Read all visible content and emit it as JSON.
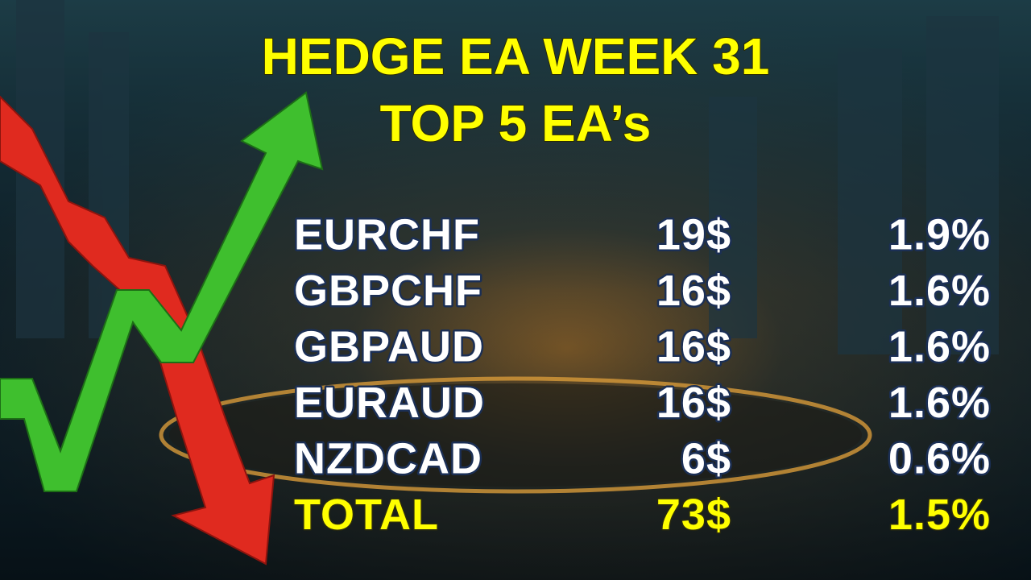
{
  "header": {
    "title": [
      "HEDGE EA WEEK 31",
      "TOP 5 EA’s"
    ]
  },
  "table": {
    "rows": [
      [
        "EURCHF",
        "19$",
        "1.9%"
      ],
      [
        "GBPCHF",
        "16$",
        "1.6%"
      ],
      [
        "GBPAUD",
        "16$",
        "1.6%"
      ],
      [
        "EURAUD",
        "16$",
        "1.6%"
      ],
      [
        "NZDCAD",
        "6$",
        "0.6%"
      ]
    ],
    "total": [
      "TOTAL",
      "73$",
      "1.5%"
    ]
  }
}
